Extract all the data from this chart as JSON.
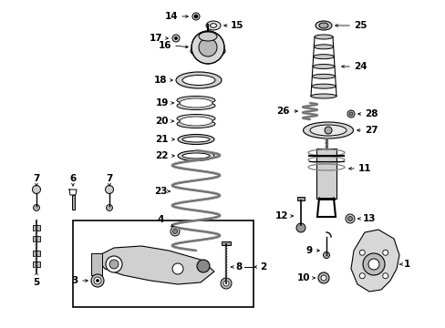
{
  "background_color": "#ffffff",
  "fig_width": 4.89,
  "fig_height": 3.6,
  "dpi": 100,
  "black": "#000000",
  "gray": "#888888",
  "light_gray": "#cccccc",
  "label_fontsize": 7.5,
  "label_fontweight": "bold"
}
